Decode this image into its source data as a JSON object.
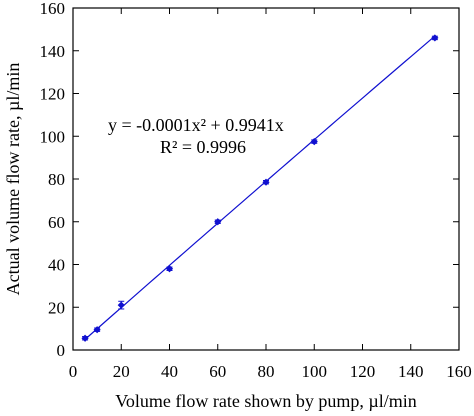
{
  "chart_data": {
    "type": "scatter",
    "title": "",
    "xlabel": "Volume flow rate shown by pump, µl/min",
    "ylabel": "Actual volume flow rate, µl/min",
    "xlim": [
      0,
      160
    ],
    "ylim": [
      0,
      160
    ],
    "x_ticks": [
      0,
      20,
      40,
      60,
      80,
      100,
      120,
      140,
      160
    ],
    "y_ticks": [
      0,
      20,
      40,
      60,
      80,
      100,
      120,
      140,
      160
    ],
    "x_tick_labels": [
      "0",
      "20",
      "40",
      "60",
      "80",
      "100",
      "120",
      "140",
      "160"
    ],
    "y_tick_labels": [
      "0",
      "20",
      "40",
      "60",
      "80",
      "100",
      "120",
      "140",
      "160"
    ],
    "grid": false,
    "legend": "none",
    "series": [
      {
        "marker": "diamond",
        "color": "#1010d0",
        "x": [
          5,
          10,
          20,
          40,
          60,
          80,
          100,
          150
        ],
        "y": [
          5.5,
          9.5,
          21,
          38,
          60,
          78.5,
          97.5,
          146
        ],
        "error": [
          0.8,
          0.8,
          1.8,
          0.8,
          0.8,
          0.8,
          0.8,
          0.8
        ]
      }
    ],
    "trendline": {
      "type": "polynomial",
      "coefficients": {
        "a": -0.0001,
        "b": 0.9941,
        "c": 0
      },
      "x_range": [
        5,
        150
      ],
      "color": "#1010d0"
    },
    "annotations": {
      "equation": "y = -0.0001x² + 0.9941x",
      "r_squared": "R² = 0.9996"
    }
  }
}
